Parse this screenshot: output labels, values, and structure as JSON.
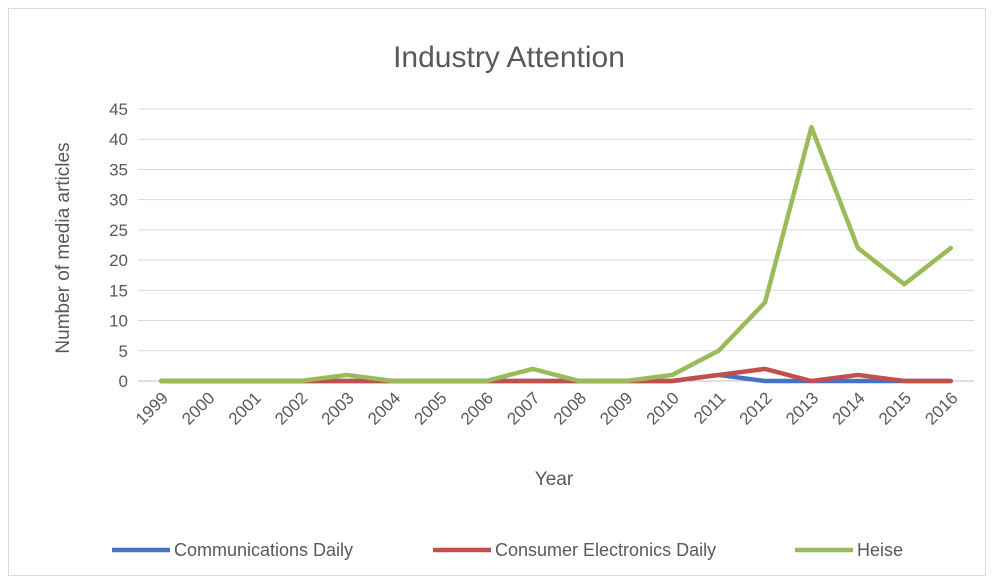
{
  "chart_data": {
    "type": "line",
    "title": "Industry Attention",
    "xlabel": "Year",
    "ylabel": "Number of media articles",
    "categories": [
      "1999",
      "2000",
      "2001",
      "2002",
      "2003",
      "2004",
      "2005",
      "2006",
      "2007",
      "2008",
      "2009",
      "2010",
      "2011",
      "2012",
      "2013",
      "2014",
      "2015",
      "2016"
    ],
    "ylim": [
      0,
      45
    ],
    "yticks": [
      0,
      5,
      10,
      15,
      20,
      25,
      30,
      35,
      40,
      45
    ],
    "grid": "horizontal",
    "legend_position": "bottom",
    "series": [
      {
        "name": "Communications Daily",
        "color": "#4472c4",
        "values": [
          0,
          0,
          0,
          0,
          0,
          0,
          0,
          0,
          0,
          0,
          0,
          0,
          1,
          0,
          0,
          0,
          0,
          0
        ]
      },
      {
        "name": "Consumer Electronics Daily",
        "color": "#c0504d",
        "values": [
          0,
          0,
          0,
          0,
          0,
          0,
          0,
          0,
          0,
          0,
          0,
          0,
          1,
          2,
          0,
          1,
          0,
          0
        ]
      },
      {
        "name": "Heise",
        "color": "#9bbb59",
        "values": [
          0,
          0,
          0,
          0,
          1,
          0,
          0,
          0,
          2,
          0,
          0,
          1,
          5,
          13,
          42,
          22,
          16,
          22
        ]
      }
    ]
  }
}
